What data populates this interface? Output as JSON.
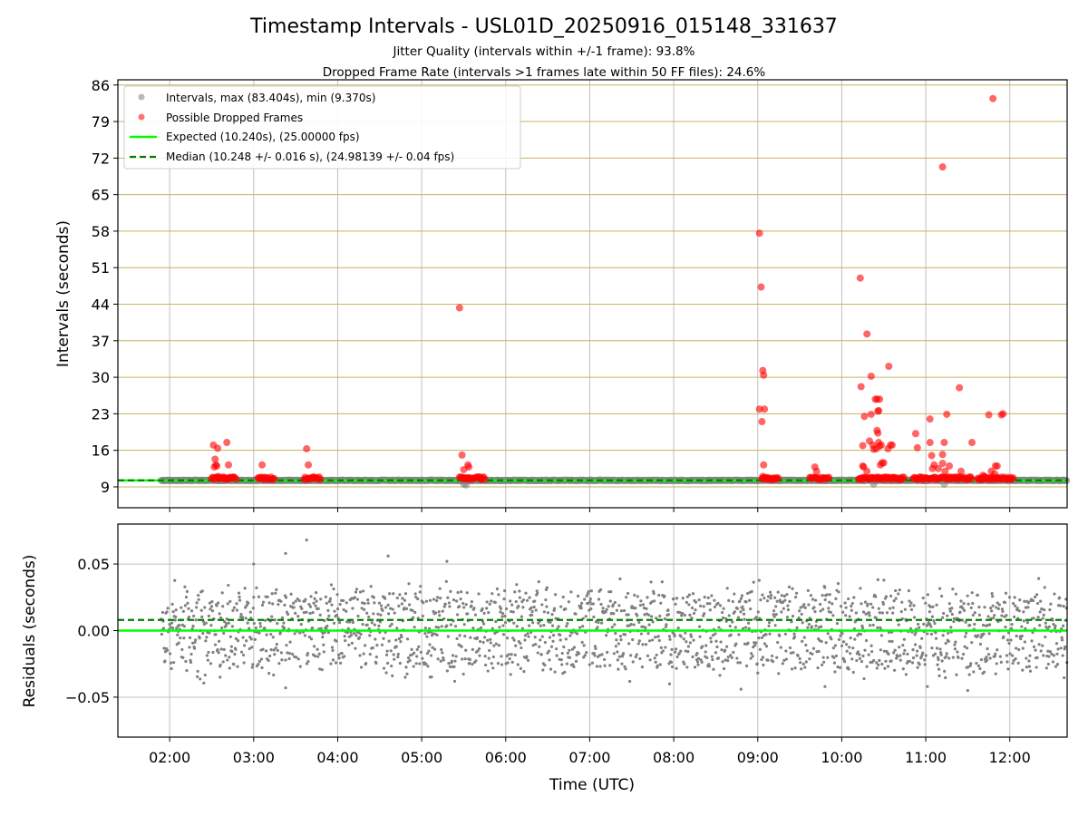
{
  "chart_data": {
    "type": "scatter",
    "title": "Timestamp Intervals - USL01D_20250916_015148_331637",
    "subtitle1": "Jitter Quality (intervals within +/-1 frame): 93.8%",
    "subtitle2": "Dropped Frame Rate (intervals >1 frames late within 50 FF files): 24.6%",
    "xlabel": "Time (UTC)",
    "x_unit": "hours (UTC)",
    "xlim": [
      1.383,
      12.683
    ],
    "xticks": [
      2,
      3,
      4,
      5,
      6,
      7,
      8,
      9,
      10,
      11,
      12
    ],
    "xtick_labels": [
      "02:00",
      "03:00",
      "04:00",
      "05:00",
      "06:00",
      "07:00",
      "08:00",
      "09:00",
      "10:00",
      "11:00",
      "12:00"
    ],
    "top": {
      "ylabel": "Intervals (seconds)",
      "ylim": [
        5.0,
        87.0
      ],
      "yticks": [
        9,
        16,
        23,
        30,
        37,
        44,
        51,
        58,
        65,
        72,
        79,
        86
      ],
      "grid": true,
      "legend_position": "upper left",
      "legend": [
        "Intervals, max (83.404s), min (9.370s)",
        "Possible Dropped Frames",
        "Expected (10.240s), (25.00000 fps)",
        "Median (10.248 +/- 0.016 s), (24.98139 +/- 0.04 fps)"
      ],
      "expected_interval": 10.24,
      "median_interval": 10.248,
      "intervals": {
        "color": "#808080",
        "x_start": 1.9,
        "x_end": 12.683,
        "y_typical": 10.24,
        "min": 9.37,
        "max": 83.404
      },
      "dropped_frames": {
        "color": "#ff0000",
        "x": [
          2.52,
          2.54,
          2.55,
          2.57,
          2.56,
          2.7,
          2.68,
          2.53,
          2.58,
          3.1,
          3.63,
          3.65,
          5.45,
          5.48,
          5.5,
          5.55,
          5.56,
          9.02,
          9.04,
          9.06,
          9.07,
          9.08,
          9.02,
          9.05,
          9.07,
          9.06,
          9.68,
          9.7,
          10.22,
          10.23,
          10.25,
          10.3,
          10.33,
          10.35,
          10.37,
          10.4,
          10.42,
          10.43,
          10.44,
          10.45,
          10.43,
          10.41,
          10.46,
          10.47,
          10.45,
          10.5,
          10.56,
          10.58,
          10.3,
          10.35,
          10.38,
          10.42,
          10.44,
          10.48,
          10.55,
          10.6,
          10.88,
          10.9,
          11.05,
          11.05,
          11.07,
          11.1,
          11.15,
          11.2,
          11.2,
          11.22,
          11.25,
          11.28,
          11.4,
          11.42,
          11.55,
          11.68,
          11.75,
          11.8,
          11.83,
          11.85,
          11.9,
          11.92,
          11.7,
          11.78,
          11.82,
          11.2,
          11.23,
          11.08,
          10.27,
          10.25,
          10.26
        ],
        "y": [
          17.0,
          14.3,
          13.2,
          16.4,
          13.0,
          13.2,
          17.5,
          12.8,
          11.0,
          13.2,
          16.3,
          13.2,
          43.3,
          15.1,
          12.3,
          13.2,
          12.8,
          57.6,
          47.3,
          31.3,
          30.4,
          23.9,
          23.9,
          21.5,
          13.2,
          11.0,
          12.8,
          12.0,
          49.0,
          28.2,
          13.0,
          38.3,
          17.8,
          30.2,
          17.0,
          25.8,
          25.8,
          23.5,
          23.6,
          25.8,
          19.3,
          16.3,
          13.2,
          17.0,
          16.8,
          13.6,
          32.1,
          17.0,
          12.0,
          22.9,
          16.2,
          19.8,
          17.5,
          13.6,
          16.3,
          17.0,
          19.2,
          16.5,
          22.0,
          17.5,
          15.0,
          13.2,
          12.5,
          13.5,
          15.2,
          17.5,
          22.9,
          13.0,
          28.0,
          12.0,
          17.5,
          11.2,
          22.8,
          83.4,
          13.0,
          13.0,
          22.8,
          23.0,
          11.0,
          12.0,
          11.5,
          70.3,
          12.0,
          12.5,
          22.5,
          16.9,
          12.8
        ],
        "baseline_clusters": [
          [
            2.5,
            2.8
          ],
          [
            3.05,
            3.25
          ],
          [
            3.6,
            3.8
          ],
          [
            5.45,
            5.75
          ],
          [
            9.05,
            9.25
          ],
          [
            9.62,
            9.85
          ],
          [
            10.2,
            10.75
          ],
          [
            10.85,
            11.55
          ],
          [
            11.62,
            12.05
          ]
        ]
      }
    },
    "bottom": {
      "ylabel": "Residuals (seconds)",
      "ylim": [
        -0.08,
        0.08
      ],
      "yticks": [
        -0.05,
        0.0,
        0.05
      ],
      "ytick_labels": [
        "−0.05",
        "0.00",
        "0.05"
      ],
      "grid": true,
      "expected_residual": 0.0,
      "median_residual": 0.008,
      "residuals": {
        "color": "#808080",
        "x_start": 1.9,
        "x_end": 12.683,
        "levels": [
          -0.02,
          0.0,
          0.02
        ],
        "spread": 0.04,
        "outliers_x": [
          3.0,
          3.38,
          3.63,
          4.6,
          2.6,
          5.3,
          8.8,
          11.5,
          9.8,
          3.38,
          5.1,
          7.95,
          11.02
        ],
        "outliers_y": [
          0.05,
          0.058,
          0.068,
          0.056,
          -0.035,
          0.052,
          -0.044,
          -0.045,
          -0.042,
          -0.043,
          -0.035,
          -0.04,
          -0.042
        ]
      }
    },
    "colors": {
      "expected_line": "#00ff00",
      "median_line": "#007f00",
      "grid_top": "#c8b060",
      "grid_bottom": "#c0c0c0"
    }
  }
}
